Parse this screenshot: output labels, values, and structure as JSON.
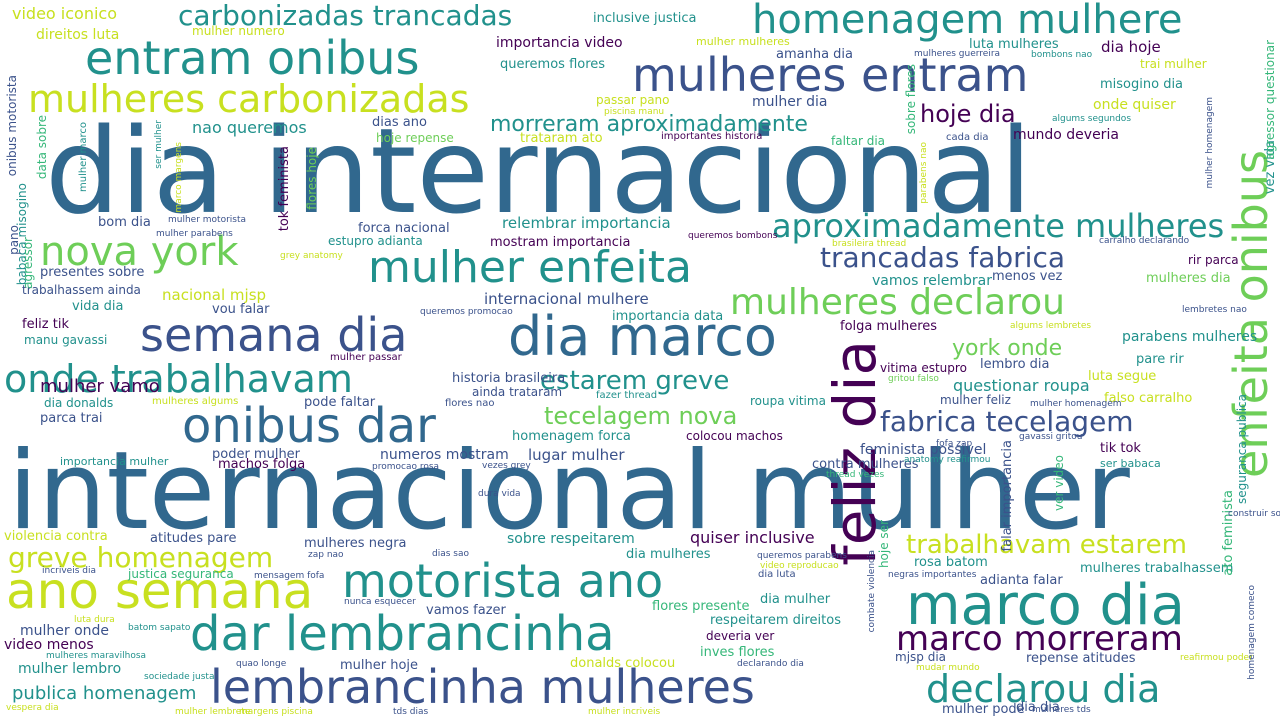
{
  "palette": {
    "purple": "#440154",
    "indigo": "#3b528b",
    "blue": "#31688e",
    "teal": "#21918c",
    "green": "#35b779",
    "lime": "#6ece58",
    "yellow": "#c8e020"
  },
  "words": [
    {
      "text": "dia internacional",
      "color": "#31688e"
    },
    {
      "text": "internacional mulher",
      "color": "#31688e"
    },
    {
      "text": "feliz dia",
      "color": "#440154"
    },
    {
      "text": "enfeita onibus",
      "color": "#6ece58"
    },
    {
      "text": "mulheres entram",
      "color": "#3b528b"
    },
    {
      "text": "entram onibus",
      "color": "#21918c"
    },
    {
      "text": "homenagem mulhere",
      "color": "#21918c"
    },
    {
      "text": "mulheres carbonizadas",
      "color": "#c8e020"
    },
    {
      "text": "carbonizadas trancadas",
      "color": "#21918c"
    },
    {
      "text": "mulher enfeita",
      "color": "#21918c"
    },
    {
      "text": "nova york",
      "color": "#6ece58"
    },
    {
      "text": "semana dia",
      "color": "#3b528b"
    },
    {
      "text": "dia marco",
      "color": "#31688e"
    },
    {
      "text": "onde trabalhavam",
      "color": "#21918c"
    },
    {
      "text": "onibus dar",
      "color": "#31688e"
    },
    {
      "text": "motorista ano",
      "color": "#21918c"
    },
    {
      "text": "ano semana",
      "color": "#c8e020"
    },
    {
      "text": "dar lembrancinha",
      "color": "#21918c"
    },
    {
      "text": "lembrancinha mulheres",
      "color": "#3b528b"
    },
    {
      "text": "marco dia",
      "color": "#21918c"
    },
    {
      "text": "marco morreram",
      "color": "#440154"
    },
    {
      "text": "declarou dia",
      "color": "#21918c"
    },
    {
      "text": "mulheres declarou",
      "color": "#6ece58"
    },
    {
      "text": "aproximadamente mulheres",
      "color": "#21918c"
    },
    {
      "text": "trancadas fabrica",
      "color": "#3b528b"
    },
    {
      "text": "fabrica tecelagem",
      "color": "#3b528b"
    },
    {
      "text": "trabalhavam estarem",
      "color": "#c8e020"
    },
    {
      "text": "greve homenagem",
      "color": "#c8e020"
    },
    {
      "text": "estarem greve",
      "color": "#21918c"
    },
    {
      "text": "tecelagem nova",
      "color": "#6ece58"
    },
    {
      "text": "morreram aproximadamente",
      "color": "#21918c"
    },
    {
      "text": "hoje dia",
      "color": "#440154"
    },
    {
      "text": "york onde",
      "color": "#6ece58"
    },
    {
      "text": "video iconico",
      "color": "#c8e020"
    },
    {
      "text": "direitos luta",
      "color": "#c8e020"
    },
    {
      "text": "mulher numero",
      "color": "#c8e020"
    },
    {
      "text": "inclusive justica",
      "color": "#21918c"
    },
    {
      "text": "importancia video",
      "color": "#440154"
    },
    {
      "text": "queremos flores",
      "color": "#21918c"
    },
    {
      "text": "mulher mulheres",
      "color": "#c8e020"
    },
    {
      "text": "amanha dia",
      "color": "#3b528b"
    },
    {
      "text": "luta mulheres",
      "color": "#21918c"
    },
    {
      "text": "dia hoje",
      "color": "#440154"
    },
    {
      "text": "trai mulher",
      "color": "#c8e020"
    },
    {
      "text": "misogino dia",
      "color": "#21918c"
    },
    {
      "text": "onde quiser",
      "color": "#c8e020"
    },
    {
      "text": "mulher dia",
      "color": "#3b528b"
    },
    {
      "text": "passar pano",
      "color": "#c8e020"
    },
    {
      "text": "nao queremos",
      "color": "#21918c"
    },
    {
      "text": "dias ano",
      "color": "#3b528b"
    },
    {
      "text": "hoje repense",
      "color": "#6ece58"
    },
    {
      "text": "trataram ato",
      "color": "#c8e020"
    },
    {
      "text": "importantes historia",
      "color": "#440154"
    },
    {
      "text": "faltar dia",
      "color": "#35b779"
    },
    {
      "text": "cada dia",
      "color": "#3b528b"
    },
    {
      "text": "mundo deveria",
      "color": "#440154"
    },
    {
      "text": "bom dia",
      "color": "#3b528b"
    },
    {
      "text": "forca nacional",
      "color": "#3b528b"
    },
    {
      "text": "relembrar importancia",
      "color": "#21918c"
    },
    {
      "text": "estupro adianta",
      "color": "#21918c"
    },
    {
      "text": "mostram importancia",
      "color": "#440154"
    },
    {
      "text": "presentes sobre",
      "color": "#3b528b"
    },
    {
      "text": "trabalhassem ainda",
      "color": "#3b528b"
    },
    {
      "text": "nacional mjsp",
      "color": "#c8e020"
    },
    {
      "text": "internacional mulhere",
      "color": "#3b528b"
    },
    {
      "text": "vamos relembrar",
      "color": "#21918c"
    },
    {
      "text": "menos vez",
      "color": "#3b528b"
    },
    {
      "text": "mulheres dia",
      "color": "#6ece58"
    },
    {
      "text": "rir parca",
      "color": "#440154"
    },
    {
      "text": "vida dia",
      "color": "#21918c"
    },
    {
      "text": "vou falar",
      "color": "#3b528b"
    },
    {
      "text": "importancia data",
      "color": "#21918c"
    },
    {
      "text": "folga mulheres",
      "color": "#440154"
    },
    {
      "text": "parabens mulheres",
      "color": "#21918c"
    },
    {
      "text": "feliz tik",
      "color": "#440154"
    },
    {
      "text": "manu gavassi",
      "color": "#21918c"
    },
    {
      "text": "mulher passar",
      "color": "#440154"
    },
    {
      "text": "historia brasileira",
      "color": "#3b528b"
    },
    {
      "text": "lembro dia",
      "color": "#3b528b"
    },
    {
      "text": "vitima estupro",
      "color": "#440154"
    },
    {
      "text": "pare rir",
      "color": "#21918c"
    },
    {
      "text": "luta segue",
      "color": "#c8e020"
    },
    {
      "text": "questionar roupa",
      "color": "#21918c"
    },
    {
      "text": "mulher vamo",
      "color": "#440154"
    },
    {
      "text": "pode faltar",
      "color": "#3b528b"
    },
    {
      "text": "ainda trataram",
      "color": "#3b528b"
    },
    {
      "text": "roupa vitima",
      "color": "#21918c"
    },
    {
      "text": "mulher feliz",
      "color": "#3b528b"
    },
    {
      "text": "falso carralho",
      "color": "#c8e020"
    },
    {
      "text": "dia donalds",
      "color": "#21918c"
    },
    {
      "text": "parca trai",
      "color": "#3b528b"
    },
    {
      "text": "homenagem forca",
      "color": "#21918c"
    },
    {
      "text": "colocou machos",
      "color": "#440154"
    },
    {
      "text": "importancia mulher",
      "color": "#21918c"
    },
    {
      "text": "poder mulher",
      "color": "#3b528b"
    },
    {
      "text": "numeros mostram",
      "color": "#3b528b"
    },
    {
      "text": "lugar mulher",
      "color": "#3b528b"
    },
    {
      "text": "feminista possivel",
      "color": "#3b528b"
    },
    {
      "text": "tik tok",
      "color": "#440154"
    },
    {
      "text": "machos folga",
      "color": "#440154"
    },
    {
      "text": "contra mulheres",
      "color": "#3b528b"
    },
    {
      "text": "ser babaca",
      "color": "#21918c"
    },
    {
      "text": "violencia contra",
      "color": "#c8e020"
    },
    {
      "text": "atitudes pare",
      "color": "#3b528b"
    },
    {
      "text": "mulheres negra",
      "color": "#3b528b"
    },
    {
      "text": "sobre respeitarem",
      "color": "#21918c"
    },
    {
      "text": "quiser inclusive",
      "color": "#440154"
    },
    {
      "text": "dia mulheres",
      "color": "#21918c"
    },
    {
      "text": "justica seguranca",
      "color": "#35b779"
    },
    {
      "text": "vamos fazer",
      "color": "#3b528b"
    },
    {
      "text": "flores presente",
      "color": "#35b779"
    },
    {
      "text": "dia mulher",
      "color": "#21918c"
    },
    {
      "text": "dia luta",
      "color": "#3b528b"
    },
    {
      "text": "rosa batom",
      "color": "#21918c"
    },
    {
      "text": "mulheres trabalhassem",
      "color": "#21918c"
    },
    {
      "text": "adianta falar",
      "color": "#3b528b"
    },
    {
      "text": "mulher onde",
      "color": "#3b528b"
    },
    {
      "text": "video menos",
      "color": "#440154"
    },
    {
      "text": "respeitarem direitos",
      "color": "#21918c"
    },
    {
      "text": "deveria ver",
      "color": "#440154"
    },
    {
      "text": "inves flores",
      "color": "#35b779"
    },
    {
      "text": "mulher lembro",
      "color": "#21918c"
    },
    {
      "text": "mulher hoje",
      "color": "#3b528b"
    },
    {
      "text": "donalds colocou",
      "color": "#c8e020"
    },
    {
      "text": "mjsp dia",
      "color": "#3b528b"
    },
    {
      "text": "repense atitudes",
      "color": "#3b528b"
    },
    {
      "text": "publica homenagem",
      "color": "#21918c"
    },
    {
      "text": "mulher pode",
      "color": "#3b528b"
    },
    {
      "text": "dia dia",
      "color": "#3b528b"
    },
    {
      "text": "onibus motorista",
      "color": "#3b528b"
    },
    {
      "text": "data sobre",
      "color": "#35b779"
    },
    {
      "text": "babaca misogino",
      "color": "#21918c"
    },
    {
      "text": "agressor",
      "color": "#35b779"
    },
    {
      "text": "pano",
      "color": "#3b528b"
    },
    {
      "text": "tok feminista",
      "color": "#440154"
    },
    {
      "text": "flores hoje",
      "color": "#6ece58"
    },
    {
      "text": "sobre flores",
      "color": "#35b779"
    },
    {
      "text": "falar importancia",
      "color": "#3b528b"
    },
    {
      "text": "ver video",
      "color": "#35b779"
    },
    {
      "text": "hoje ser",
      "color": "#35b779"
    },
    {
      "text": "ato feminista",
      "color": "#35b779"
    },
    {
      "text": "seguranca publica",
      "color": "#21918c"
    },
    {
      "text": "vez vida",
      "color": "#21918c"
    },
    {
      "text": "agressor questionar",
      "color": "#35b779"
    },
    {
      "text": "mulher marco",
      "color": "#21918c"
    },
    {
      "text": "ser mulher",
      "color": "#21918c"
    },
    {
      "text": "marco margens",
      "color": "#c8e020"
    },
    {
      "text": "parabens nao",
      "color": "#c8e020"
    },
    {
      "text": "mulher homenagem",
      "color": "#3b528b"
    },
    {
      "text": "piscina manu",
      "color": "#c8e020"
    },
    {
      "text": "mulheres guerreira",
      "color": "#3b528b"
    },
    {
      "text": "bombons nao",
      "color": "#21918c"
    },
    {
      "text": "algums segundos",
      "color": "#21918c"
    },
    {
      "text": "mulher motorista",
      "color": "#3b528b"
    },
    {
      "text": "mulher parabens",
      "color": "#3b528b"
    },
    {
      "text": "queremos bombons",
      "color": "#440154"
    },
    {
      "text": "brasileira thread",
      "color": "#c8e020"
    },
    {
      "text": "carralho declarando",
      "color": "#3b528b"
    },
    {
      "text": "grey anatomy",
      "color": "#c8e020"
    },
    {
      "text": "queremos promocao",
      "color": "#3b528b"
    },
    {
      "text": "lembretes nao",
      "color": "#3b528b"
    },
    {
      "text": "algums lembretes",
      "color": "#c8e020"
    },
    {
      "text": "gritou falso",
      "color": "#6ece58"
    },
    {
      "text": "mulheres algums",
      "color": "#c8e020"
    },
    {
      "text": "flores nao",
      "color": "#3b528b"
    },
    {
      "text": "fazer thread",
      "color": "#21918c"
    },
    {
      "text": "mulher homenagem",
      "color": "#3b528b"
    },
    {
      "text": "gavassi gritou",
      "color": "#3b528b"
    },
    {
      "text": "fofa zap",
      "color": "#3b528b"
    },
    {
      "text": "anatomy reafirmou",
      "color": "#21918c"
    },
    {
      "text": "thread vezes",
      "color": "#35b779"
    },
    {
      "text": "promocao rosa",
      "color": "#3b528b"
    },
    {
      "text": "vezes grey",
      "color": "#3b528b"
    },
    {
      "text": "dura vida",
      "color": "#3b528b"
    },
    {
      "text": "construir sociedade",
      "color": "#3b528b"
    },
    {
      "text": "zap nao",
      "color": "#3b528b"
    },
    {
      "text": "dias sao",
      "color": "#3b528b"
    },
    {
      "text": "queremos parabens",
      "color": "#3b528b"
    },
    {
      "text": "video reproducao",
      "color": "#c8e020"
    },
    {
      "text": "negras importantes",
      "color": "#3b528b"
    },
    {
      "text": "incriveis dia",
      "color": "#3b528b"
    },
    {
      "text": "mensagem fofa",
      "color": "#3b528b"
    },
    {
      "text": "nunca esquecer",
      "color": "#3b528b"
    },
    {
      "text": "luta dura",
      "color": "#c8e020"
    },
    {
      "text": "batom sapato",
      "color": "#21918c"
    },
    {
      "text": "mulheres maravilhosa",
      "color": "#21918c"
    },
    {
      "text": "quao longe",
      "color": "#3b528b"
    },
    {
      "text": "declarando dia",
      "color": "#3b528b"
    },
    {
      "text": "mudar mundo",
      "color": "#c8e020"
    },
    {
      "text": "reafirmou poder",
      "color": "#c8e020"
    },
    {
      "text": "homenagem comeco",
      "color": "#3b528b"
    },
    {
      "text": "sociedade justa",
      "color": "#21918c"
    },
    {
      "text": "vespera dia",
      "color": "#c8e020"
    },
    {
      "text": "mulher lembrete",
      "color": "#c8e020"
    },
    {
      "text": "margens piscina",
      "color": "#c8e020"
    },
    {
      "text": "tds dias",
      "color": "#3b528b"
    },
    {
      "text": "mulher incriveis",
      "color": "#c8e020"
    },
    {
      "text": "mulheres tds",
      "color": "#3b528b"
    },
    {
      "text": "combate violencia",
      "color": "#3b528b"
    },
    {
      "text": "sapato dia",
      "color": "#c8e020"
    },
    {
      "text": "queremos mensagem",
      "color": "#3b528b"
    }
  ]
}
